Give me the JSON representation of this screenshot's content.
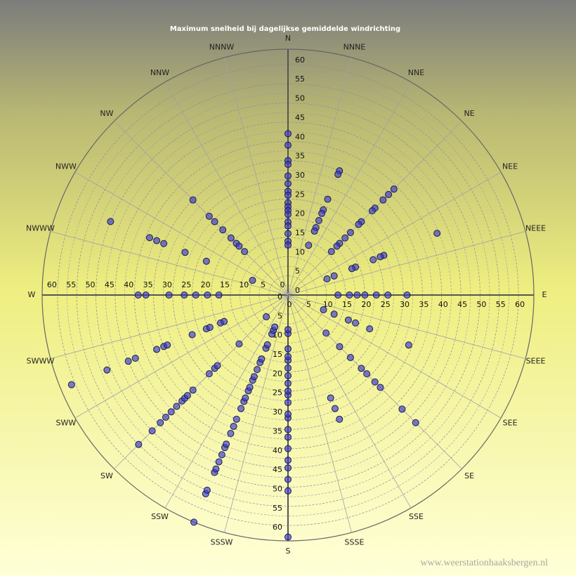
{
  "chart_data": {
    "type": "polar-scatter",
    "title": "Maximum  snelheid  bij  dagelijkse  gemiddelde  windrichting",
    "source": "www.weerstationhaaksbergen.nl",
    "directions": [
      "N",
      "NNNE",
      "NNE",
      "NE",
      "NEE",
      "NEEE",
      "E",
      "SEEE",
      "SEE",
      "SE",
      "SSE",
      "SSSE",
      "S",
      "SSSW",
      "SSW",
      "SW",
      "SWW",
      "SWWW",
      "W",
      "NWWW",
      "NWW",
      "NW",
      "NNW",
      "NNNW"
    ],
    "rlim": [
      0,
      64
    ],
    "rticks": [
      0,
      5,
      10,
      15,
      20,
      25,
      30,
      35,
      40,
      45,
      50,
      55,
      60
    ],
    "series": [
      {
        "color": "#3a3ad0",
        "x": [
          0,
          0,
          0,
          0,
          0,
          0,
          0,
          0,
          0,
          0,
          0,
          0,
          0,
          0,
          0,
          0,
          0,
          22.5,
          22.5,
          22.5,
          22.5,
          22.5,
          22.5,
          22.5,
          22.5,
          22.5,
          45,
          45,
          45,
          45,
          45,
          45,
          45,
          45,
          45,
          45,
          45,
          45,
          67.5,
          67.5,
          67.5,
          67.5,
          67.5,
          67.5,
          67.5,
          67.5,
          90,
          90,
          90,
          90,
          90,
          90,
          90,
          112.5,
          112.5,
          112.5,
          112.5,
          112.5,
          112.5,
          135,
          135,
          135,
          135,
          135,
          135,
          135,
          135,
          135,
          157.5,
          157.5,
          157.5,
          180,
          180,
          180,
          180,
          180,
          180,
          180,
          180,
          180,
          180,
          180,
          180,
          180,
          180,
          180,
          180,
          180,
          180,
          180,
          180,
          180,
          202.5,
          202.5,
          202.5,
          202.5,
          202.5,
          202.5,
          202.5,
          202.5,
          202.5,
          202.5,
          202.5,
          202.5,
          202.5,
          202.5,
          202.5,
          202.5,
          202.5,
          202.5,
          202.5,
          202.5,
          202.5,
          202.5,
          202.5,
          202.5,
          202.5,
          202.5,
          202.5,
          225,
          225,
          225,
          225,
          225,
          225,
          225,
          225,
          225,
          225,
          225,
          225,
          225,
          225,
          225,
          247.5,
          247.5,
          247.5,
          247.5,
          247.5,
          247.5,
          247.5,
          247.5,
          247.5,
          247.5,
          247.5,
          247.5,
          270,
          270,
          270,
          270,
          270,
          270,
          270,
          292.5,
          292.5,
          292.5,
          292.5,
          292.5,
          292.5,
          292.5,
          315,
          315,
          315,
          315,
          315,
          315,
          315,
          315
        ],
        "values": [
          42,
          39,
          35,
          34,
          31,
          29,
          27,
          26,
          24,
          23,
          22,
          21,
          19,
          18,
          16,
          14,
          13,
          35,
          34,
          27,
          24,
          23,
          21,
          19,
          18,
          14,
          39,
          37,
          35,
          32,
          31,
          27,
          26,
          23,
          21,
          19,
          18,
          16,
          42,
          27,
          26,
          24,
          19,
          18,
          13,
          11,
          31,
          26,
          23,
          20,
          18,
          16,
          13,
          34,
          23,
          19,
          17,
          13,
          10,
          47,
          42,
          34,
          32,
          29,
          27,
          23,
          19,
          14,
          35,
          32,
          29,
          63,
          51,
          48,
          45,
          43,
          40,
          37,
          35,
          32,
          31,
          28,
          26,
          25,
          23,
          21,
          19,
          17,
          16,
          14,
          10,
          9,
          64,
          56,
          55,
          50,
          49,
          47,
          45,
          43,
          42,
          39,
          37,
          35,
          32,
          30,
          29,
          27,
          26,
          24,
          23,
          21,
          19,
          18,
          15,
          14,
          11,
          10,
          9,
          55,
          50,
          47,
          45,
          43,
          41,
          39,
          38,
          37,
          35,
          29,
          27,
          26,
          18,
          8,
          61,
          51,
          45,
          43,
          37,
          35,
          34,
          27,
          23,
          22,
          19,
          18,
          39,
          37,
          31,
          27,
          24,
          21,
          18,
          50,
          39,
          37,
          35,
          29,
          23,
          10,
          35,
          29,
          27,
          24,
          21,
          19,
          18,
          16
        ]
      }
    ]
  }
}
